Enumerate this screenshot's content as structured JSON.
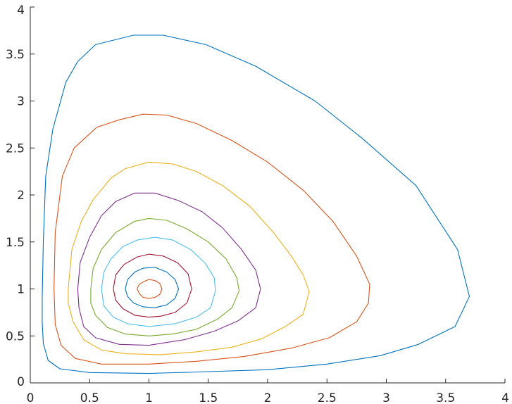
{
  "chart_data": {
    "type": "line",
    "title": "",
    "xlabel": "",
    "ylabel": "",
    "xlim": [
      0,
      4
    ],
    "ylim": [
      0,
      4
    ],
    "grid": false,
    "legend": "none",
    "xticks": [
      "0",
      "0.5",
      "1",
      "1.5",
      "2",
      "2.5",
      "3",
      "3.5",
      "4"
    ],
    "yticks": [
      "0",
      "0.5",
      "1",
      "1.5",
      "2",
      "2.5",
      "3",
      "3.5",
      "4"
    ],
    "xtick_values": [
      0,
      0.5,
      1,
      1.5,
      2,
      2.5,
      3,
      3.5,
      4
    ],
    "ytick_values": [
      0,
      0.5,
      1,
      1.5,
      2,
      2.5,
      3,
      3.5,
      4
    ],
    "series": [
      {
        "color": "#0072BD",
        "points": [
          [
            0.1,
            0.9
          ],
          [
            0.11,
            1.5
          ],
          [
            0.13,
            2.2
          ],
          [
            0.19,
            2.7
          ],
          [
            0.3,
            3.2
          ],
          [
            0.4,
            3.42
          ],
          [
            0.55,
            3.6
          ],
          [
            0.87,
            3.7
          ],
          [
            1.12,
            3.7
          ],
          [
            1.48,
            3.6
          ],
          [
            1.9,
            3.37
          ],
          [
            2.4,
            3.0
          ],
          [
            2.8,
            2.6
          ],
          [
            3.25,
            2.1
          ],
          [
            3.6,
            1.42
          ],
          [
            3.7,
            0.92
          ],
          [
            3.58,
            0.6
          ],
          [
            3.27,
            0.41
          ],
          [
            2.95,
            0.29
          ],
          [
            2.5,
            0.2
          ],
          [
            2.0,
            0.14
          ],
          [
            1.5,
            0.12
          ],
          [
            1.0,
            0.1
          ],
          [
            0.5,
            0.11
          ],
          [
            0.25,
            0.15
          ],
          [
            0.15,
            0.24
          ],
          [
            0.11,
            0.42
          ],
          [
            0.1,
            0.65
          ],
          [
            0.1,
            0.9
          ]
        ]
      },
      {
        "color": "#D95319",
        "points": [
          [
            0.2,
            1.0
          ],
          [
            0.21,
            1.6
          ],
          [
            0.27,
            2.2
          ],
          [
            0.37,
            2.5
          ],
          [
            0.56,
            2.72
          ],
          [
            0.75,
            2.8
          ],
          [
            0.95,
            2.86
          ],
          [
            1.15,
            2.85
          ],
          [
            1.4,
            2.76
          ],
          [
            1.7,
            2.58
          ],
          [
            2.0,
            2.35
          ],
          [
            2.3,
            2.05
          ],
          [
            2.55,
            1.72
          ],
          [
            2.75,
            1.35
          ],
          [
            2.86,
            1.05
          ],
          [
            2.85,
            0.85
          ],
          [
            2.75,
            0.65
          ],
          [
            2.52,
            0.48
          ],
          [
            2.2,
            0.37
          ],
          [
            1.8,
            0.28
          ],
          [
            1.4,
            0.23
          ],
          [
            1.0,
            0.2
          ],
          [
            0.6,
            0.2
          ],
          [
            0.38,
            0.26
          ],
          [
            0.26,
            0.4
          ],
          [
            0.21,
            0.62
          ],
          [
            0.2,
            1.0
          ]
        ]
      },
      {
        "color": "#EDB120",
        "points": [
          [
            0.32,
            1.0
          ],
          [
            0.35,
            1.42
          ],
          [
            0.43,
            1.72
          ],
          [
            0.53,
            1.95
          ],
          [
            0.68,
            2.18
          ],
          [
            0.8,
            2.28
          ],
          [
            1.0,
            2.35
          ],
          [
            1.2,
            2.33
          ],
          [
            1.4,
            2.25
          ],
          [
            1.62,
            2.1
          ],
          [
            1.85,
            1.88
          ],
          [
            2.05,
            1.6
          ],
          [
            2.2,
            1.35
          ],
          [
            2.3,
            1.15
          ],
          [
            2.35,
            0.97
          ],
          [
            2.3,
            0.73
          ],
          [
            2.15,
            0.6
          ],
          [
            1.95,
            0.47
          ],
          [
            1.7,
            0.38
          ],
          [
            1.4,
            0.33
          ],
          [
            1.1,
            0.3
          ],
          [
            0.8,
            0.31
          ],
          [
            0.6,
            0.35
          ],
          [
            0.45,
            0.46
          ],
          [
            0.36,
            0.65
          ],
          [
            0.32,
            0.85
          ],
          [
            0.32,
            1.0
          ]
        ]
      },
      {
        "color": "#7E2F8E",
        "points": [
          [
            0.4,
            1.0
          ],
          [
            0.42,
            1.28
          ],
          [
            0.5,
            1.55
          ],
          [
            0.6,
            1.78
          ],
          [
            0.72,
            1.93
          ],
          [
            0.88,
            2.02
          ],
          [
            1.05,
            2.02
          ],
          [
            1.25,
            1.94
          ],
          [
            1.45,
            1.82
          ],
          [
            1.62,
            1.65
          ],
          [
            1.78,
            1.42
          ],
          [
            1.9,
            1.2
          ],
          [
            1.94,
            1.0
          ],
          [
            1.9,
            0.8
          ],
          [
            1.75,
            0.66
          ],
          [
            1.55,
            0.55
          ],
          [
            1.3,
            0.46
          ],
          [
            1.0,
            0.4
          ],
          [
            0.75,
            0.41
          ],
          [
            0.55,
            0.48
          ],
          [
            0.45,
            0.6
          ],
          [
            0.41,
            0.8
          ],
          [
            0.4,
            1.0
          ]
        ]
      },
      {
        "color": "#77AC30",
        "points": [
          [
            0.51,
            1.0
          ],
          [
            0.53,
            1.22
          ],
          [
            0.6,
            1.42
          ],
          [
            0.72,
            1.6
          ],
          [
            0.88,
            1.72
          ],
          [
            1.0,
            1.75
          ],
          [
            1.15,
            1.73
          ],
          [
            1.32,
            1.64
          ],
          [
            1.5,
            1.5
          ],
          [
            1.65,
            1.32
          ],
          [
            1.74,
            1.12
          ],
          [
            1.76,
            0.98
          ],
          [
            1.7,
            0.8
          ],
          [
            1.58,
            0.68
          ],
          [
            1.4,
            0.57
          ],
          [
            1.2,
            0.52
          ],
          [
            1.0,
            0.5
          ],
          [
            0.8,
            0.52
          ],
          [
            0.65,
            0.59
          ],
          [
            0.55,
            0.72
          ],
          [
            0.51,
            0.85
          ],
          [
            0.51,
            1.0
          ]
        ]
      },
      {
        "color": "#4DBEEE",
        "points": [
          [
            0.6,
            1.0
          ],
          [
            0.62,
            1.18
          ],
          [
            0.68,
            1.32
          ],
          [
            0.78,
            1.45
          ],
          [
            0.9,
            1.52
          ],
          [
            1.05,
            1.55
          ],
          [
            1.2,
            1.52
          ],
          [
            1.35,
            1.42
          ],
          [
            1.47,
            1.28
          ],
          [
            1.55,
            1.12
          ],
          [
            1.56,
            0.98
          ],
          [
            1.52,
            0.8
          ],
          [
            1.4,
            0.7
          ],
          [
            1.22,
            0.63
          ],
          [
            1.0,
            0.6
          ],
          [
            0.82,
            0.63
          ],
          [
            0.7,
            0.7
          ],
          [
            0.62,
            0.82
          ],
          [
            0.6,
            1.0
          ]
        ]
      },
      {
        "color": "#A2142F",
        "points": [
          [
            0.7,
            1.0
          ],
          [
            0.72,
            1.15
          ],
          [
            0.79,
            1.26
          ],
          [
            0.9,
            1.34
          ],
          [
            1.0,
            1.37
          ],
          [
            1.12,
            1.35
          ],
          [
            1.24,
            1.28
          ],
          [
            1.33,
            1.16
          ],
          [
            1.36,
            1.0
          ],
          [
            1.32,
            0.85
          ],
          [
            1.22,
            0.75
          ],
          [
            1.1,
            0.71
          ],
          [
            1.0,
            0.7
          ],
          [
            0.88,
            0.72
          ],
          [
            0.78,
            0.79
          ],
          [
            0.72,
            0.88
          ],
          [
            0.7,
            1.0
          ]
        ]
      },
      {
        "color": "#0072BD",
        "points": [
          [
            0.8,
            1.0
          ],
          [
            0.82,
            1.1
          ],
          [
            0.88,
            1.18
          ],
          [
            0.95,
            1.22
          ],
          [
            1.05,
            1.23
          ],
          [
            1.15,
            1.18
          ],
          [
            1.22,
            1.1
          ],
          [
            1.25,
            1.0
          ],
          [
            1.22,
            0.9
          ],
          [
            1.15,
            0.83
          ],
          [
            1.05,
            0.8
          ],
          [
            0.95,
            0.81
          ],
          [
            0.87,
            0.85
          ],
          [
            0.82,
            0.92
          ],
          [
            0.8,
            1.0
          ]
        ]
      },
      {
        "color": "#D95319",
        "points": [
          [
            0.9,
            1.0
          ],
          [
            0.92,
            1.05
          ],
          [
            0.96,
            1.08
          ],
          [
            1.0,
            1.1
          ],
          [
            1.05,
            1.09
          ],
          [
            1.09,
            1.06
          ],
          [
            1.11,
            1.0
          ],
          [
            1.09,
            0.94
          ],
          [
            1.05,
            0.91
          ],
          [
            1.0,
            0.9
          ],
          [
            0.95,
            0.91
          ],
          [
            0.92,
            0.95
          ],
          [
            0.9,
            1.0
          ]
        ]
      }
    ]
  }
}
